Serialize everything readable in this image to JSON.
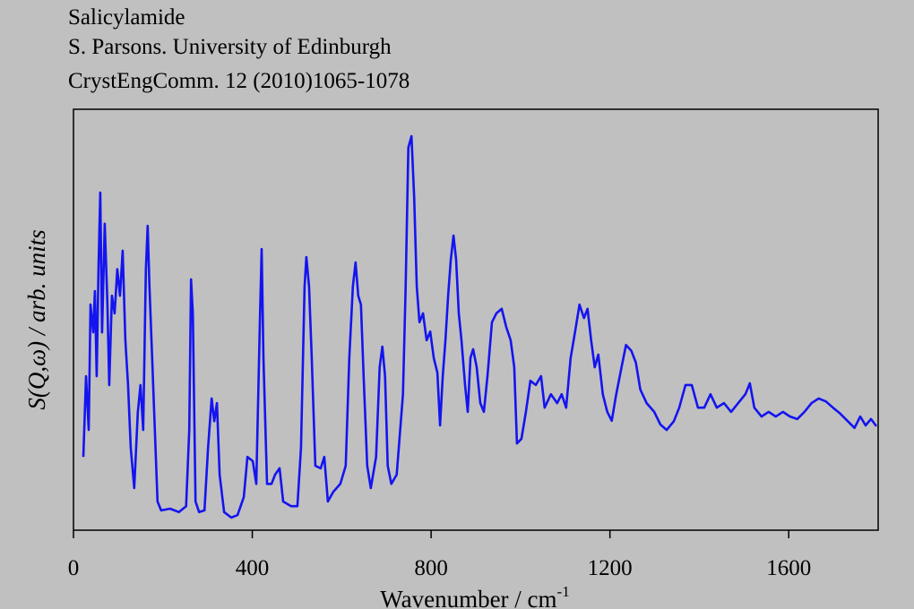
{
  "chart_data": {
    "type": "line",
    "title_lines": [
      "Salicylamide",
      "S. Parsons. University of Edinburgh",
      "CrystEngComm. 12 (2010)1065-1078"
    ],
    "x_label": "Wavenumber / cm",
    "x_label_sup": "-1",
    "y_label": "S(Q,ω) / arb. units",
    "xlim": [
      0,
      1800
    ],
    "ylim": [
      0,
      100
    ],
    "xticks": [
      0,
      400,
      800,
      1200,
      1600
    ],
    "color": "#1414f0",
    "x": [
      22,
      28,
      34,
      38,
      44,
      48,
      52,
      56,
      60,
      64,
      70,
      76,
      80,
      86,
      92,
      98,
      104,
      110,
      116,
      122,
      128,
      136,
      144,
      150,
      156,
      162,
      166,
      170,
      176,
      182,
      188,
      196,
      216,
      236,
      252,
      259,
      263,
      267,
      273,
      281,
      293,
      301,
      309,
      315,
      321,
      327,
      337,
      353,
      367,
      381,
      389,
      401,
      409,
      417,
      421,
      425,
      433,
      443,
      451,
      461,
      469,
      487,
      501,
      509,
      517,
      521,
      527,
      533,
      541,
      553,
      561,
      569,
      581,
      597,
      609,
      617,
      625,
      631,
      637,
      643,
      649,
      657,
      665,
      677,
      685,
      691,
      697,
      703,
      711,
      723,
      737,
      743,
      749,
      756,
      762,
      768,
      774,
      782,
      790,
      798,
      806,
      814,
      820,
      826,
      832,
      838,
      844,
      850,
      856,
      862,
      868,
      876,
      882,
      888,
      894,
      902,
      910,
      918,
      926,
      936,
      946,
      958,
      968,
      978,
      986,
      992,
      1002,
      1012,
      1022,
      1034,
      1046,
      1054,
      1068,
      1082,
      1092,
      1102,
      1112,
      1122,
      1132,
      1142,
      1150,
      1158,
      1166,
      1174,
      1184,
      1194,
      1204,
      1214,
      1226,
      1236,
      1248,
      1258,
      1268,
      1282,
      1299,
      1313,
      1327,
      1343,
      1355,
      1369,
      1383,
      1397,
      1411,
      1425,
      1439,
      1455,
      1471,
      1487,
      1503,
      1513,
      1523,
      1539,
      1555,
      1571,
      1587,
      1603,
      1619,
      1635,
      1651,
      1667,
      1683,
      1699,
      1715,
      1731,
      1747,
      1760,
      1772,
      1784,
      1796
    ],
    "values": [
      17.4,
      36.6,
      23.8,
      53.6,
      47,
      56.8,
      36.6,
      62,
      80.2,
      47,
      72.8,
      53.6,
      34.5,
      55.7,
      51.5,
      62,
      55.7,
      66.4,
      45.1,
      34.5,
      19.6,
      10,
      28,
      34.5,
      23.8,
      62,
      72.3,
      57.9,
      40.9,
      23.8,
      6.8,
      4.7,
      5.1,
      4.3,
      5.7,
      23.8,
      59.6,
      51.5,
      6.8,
      4.3,
      4.7,
      19.6,
      31.3,
      25.9,
      30.2,
      13.2,
      4.3,
      3,
      3.6,
      7.9,
      17.4,
      16.4,
      11,
      49.4,
      66.8,
      40.9,
      11,
      11,
      13.2,
      14.7,
      6.8,
      5.7,
      5.7,
      19.6,
      57.9,
      64.9,
      57.9,
      40.9,
      15.3,
      14.7,
      17.4,
      6.8,
      9.1,
      11,
      15.3,
      40.9,
      57.9,
      63.6,
      55.7,
      53.6,
      36.6,
      15.3,
      10,
      17.4,
      38.7,
      43.6,
      36.6,
      15.3,
      11,
      13.2,
      32.3,
      57.9,
      90.9,
      93.6,
      79.1,
      57.9,
      49.4,
      51.5,
      45.1,
      47.2,
      40.9,
      37.4,
      24.9,
      36.6,
      45.1,
      55.7,
      64.3,
      70,
      64.3,
      51.5,
      45.1,
      34.5,
      28.1,
      40.9,
      43,
      38.7,
      30.2,
      28.1,
      36.6,
      49.4,
      51.5,
      52.6,
      48.3,
      45.1,
      38.7,
      20.6,
      21.7,
      28.1,
      35.5,
      34.5,
      36.6,
      29.1,
      32.3,
      30.2,
      32.3,
      29.1,
      40.9,
      47.2,
      53.6,
      50.4,
      52.6,
      45.1,
      38.7,
      41.7,
      32.3,
      28.1,
      26,
      32.3,
      38.7,
      44,
      42.6,
      39.8,
      33.4,
      30.2,
      28.1,
      25.1,
      23.8,
      25.9,
      29.1,
      34.5,
      34.5,
      29.1,
      29.1,
      32.3,
      29.1,
      30.2,
      28.1,
      30.2,
      32.3,
      34.9,
      29.1,
      27,
      28.1,
      27,
      28.1,
      27,
      26.4,
      28.1,
      30.2,
      31.3,
      30.6,
      29.1,
      27.7,
      26,
      24.3,
      27,
      24.9,
      26.4,
      24.7
    ]
  }
}
